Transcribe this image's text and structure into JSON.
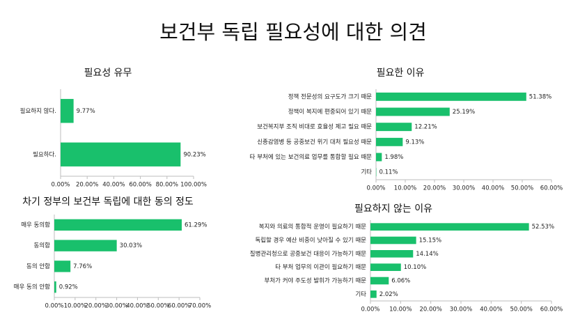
{
  "title": "보건부 독립 필요성에 대한 의견",
  "chart_data": [
    {
      "type": "bar",
      "orientation": "horizontal",
      "title": "필요성 유무",
      "color": "#19c06c",
      "categories": [
        "필요하지 않다.",
        "필요하다."
      ],
      "values": [
        9.77,
        90.23
      ],
      "value_labels": [
        "9.77%",
        "90.23%"
      ],
      "xlim": [
        0,
        100
      ],
      "xticks": [
        {
          "value": 0,
          "label": "0.00%"
        },
        {
          "value": 20,
          "label": "20.00%"
        },
        {
          "value": 40,
          "label": "40.00%"
        },
        {
          "value": 60,
          "label": "60.00%"
        },
        {
          "value": 80,
          "label": "80.00%"
        },
        {
          "value": 100,
          "label": "100.00%"
        }
      ]
    },
    {
      "type": "bar",
      "orientation": "horizontal",
      "title": "필요한 이유",
      "color": "#19c06c",
      "categories": [
        "정책 전문성의 요구도가 크기 때문",
        "정책이 복지에 편중되어 있기 때문",
        "보건복지부 조직 비대로 효율성 제고 필요 때문",
        "신종감염병 등 공중보건 위기 대처 필요성 때문",
        "타 부처에 있는 보건의료 업무를 통합할 필요 때문",
        "기타"
      ],
      "values": [
        51.38,
        25.19,
        12.21,
        9.13,
        1.98,
        0.11
      ],
      "value_labels": [
        "51.38%",
        "25.19%",
        "12.21%",
        "9.13%",
        "1.98%",
        "0.11%"
      ],
      "xlim": [
        0,
        60
      ],
      "xticks": [
        {
          "value": 0,
          "label": "0.00%"
        },
        {
          "value": 10,
          "label": "10.00%"
        },
        {
          "value": 20,
          "label": "20.00%"
        },
        {
          "value": 30,
          "label": "30.00%"
        },
        {
          "value": 40,
          "label": "40.00%"
        },
        {
          "value": 50,
          "label": "50.00%"
        },
        {
          "value": 60,
          "label": "60.00%"
        }
      ]
    },
    {
      "type": "bar",
      "orientation": "horizontal",
      "title": "차기 정부의 보건부 독립에 대한 동의 정도",
      "color": "#19c06c",
      "categories": [
        "매우 동의함",
        "동의함",
        "동의 안함",
        "매우 동의 안함"
      ],
      "values": [
        61.29,
        30.03,
        7.76,
        0.92
      ],
      "value_labels": [
        "61.29%",
        "30.03%",
        "7.76%",
        "0.92%"
      ],
      "xlim": [
        0,
        70
      ],
      "xticks": [
        {
          "value": 0,
          "label": "0.00%"
        },
        {
          "value": 10,
          "label": "10.00%"
        },
        {
          "value": 20,
          "label": "20.00%"
        },
        {
          "value": 30,
          "label": "30.00%"
        },
        {
          "value": 40,
          "label": "40.00%"
        },
        {
          "value": 50,
          "label": "50.00%"
        },
        {
          "value": 60,
          "label": "60.00%"
        },
        {
          "value": 70,
          "label": "70.00%"
        }
      ]
    },
    {
      "type": "bar",
      "orientation": "horizontal",
      "title": "필요하지 않는 이유",
      "color": "#19c06c",
      "categories": [
        "복지와 의료의 통합적 운영이 필요하기 때문",
        "독립할 경우 예산 비중이 낮아질 수 있기 때문",
        "질병관리청으로 공중보건 대응이 가능하기 때문",
        "타 부처 업무의 이관이 필요하기 때문",
        "부처가 커야 주도성 발휘가 가능하기 때문",
        "기타"
      ],
      "values": [
        52.53,
        15.15,
        14.14,
        10.1,
        6.06,
        2.02
      ],
      "value_labels": [
        "52.53%",
        "15.15%",
        "14.14%",
        "10.10%",
        "6.06%",
        "2.02%"
      ],
      "xlim": [
        0,
        60
      ],
      "xticks": [
        {
          "value": 0,
          "label": "0.00%"
        },
        {
          "value": 10,
          "label": "10.00%"
        },
        {
          "value": 20,
          "label": "20.00%"
        },
        {
          "value": 30,
          "label": "30.00%"
        },
        {
          "value": 40,
          "label": "40.00%"
        },
        {
          "value": 50,
          "label": "50.00%"
        },
        {
          "value": 60,
          "label": "60.00%"
        }
      ]
    }
  ]
}
